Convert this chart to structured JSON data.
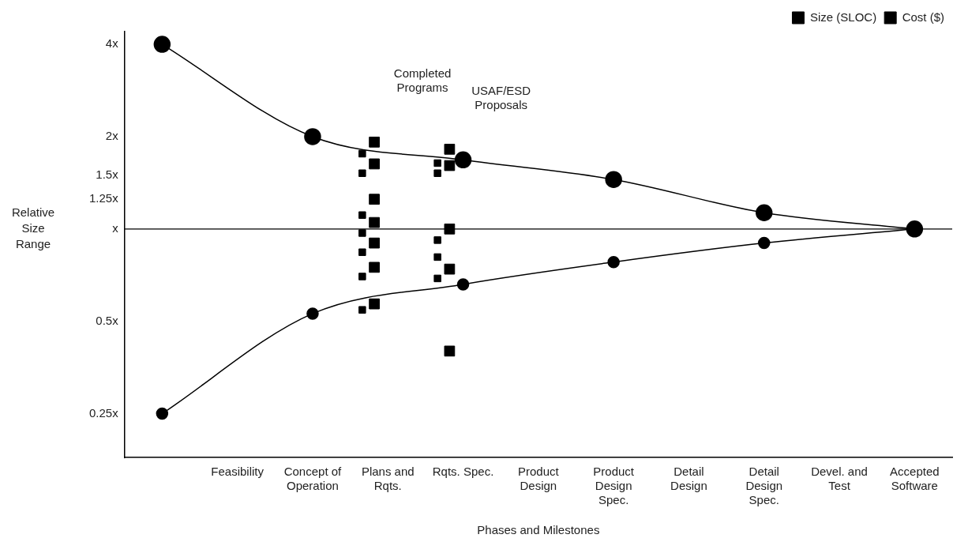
{
  "chart_data": {
    "type": "line",
    "xlabel": "Phases and Milestones",
    "ylabel": "Relative Size Range",
    "log": "y",
    "grid": false,
    "legend": "top right",
    "categories": [
      null,
      "Feasibility",
      "Concept of Operation",
      "Plans and Rqts.",
      "Rqts. Spec.",
      "Product Design",
      "Product Design Spec.",
      "Detail Design",
      "Detail Design Spec.",
      "Devel. and Test",
      "Accepted Software"
    ],
    "ylim": [
      0.18,
      4.4
    ],
    "yticks": [
      {
        "value": 0.25,
        "label": "0.25x"
      },
      {
        "value": 0.5,
        "label": "0.5x"
      },
      {
        "value": 1,
        "label": "x"
      },
      {
        "value": 1.25,
        "label": "1.25x"
      },
      {
        "value": 1.5,
        "label": "1.5x"
      },
      {
        "value": 2,
        "label": "2x"
      },
      {
        "value": 4,
        "label": "4x"
      }
    ],
    "ref_lines": [
      {
        "axis": "y",
        "value": 1,
        "color": "#000000"
      }
    ],
    "annotations": [
      "Completed Programs",
      "USAF/ESD Proposals"
    ],
    "series": [
      {
        "color": "#000000",
        "marker": "circle",
        "values": [
          4,
          null,
          2,
          null,
          1.68,
          null,
          1.45,
          null,
          1.13,
          null,
          1
        ]
      },
      {
        "color": "#000000",
        "marker": "circle",
        "values": [
          0.25,
          null,
          0.53,
          null,
          0.66,
          null,
          0.78,
          null,
          0.9,
          null,
          1
        ]
      },
      {
        "type": "scatter",
        "name": "Size (SLOC)",
        "color": "#000000",
        "marker": "square",
        "x": [
          "Plans and Rqts.",
          "Plans and Rqts.",
          "Plans and Rqts.",
          "Plans and Rqts.",
          "Plans and Rqts.",
          "Plans and Rqts.",
          "Plans and Rqts.",
          "Rqts. Spec.",
          "Rqts. Spec.",
          "Rqts. Spec.",
          "Rqts. Spec.",
          "Rqts. Spec."
        ],
        "values": [
          1.92,
          1.63,
          1.25,
          1.05,
          0.9,
          0.75,
          0.57,
          1.82,
          1.61,
          1,
          0.74,
          0.4
        ]
      },
      {
        "type": "scatter",
        "name": "Cost ($)",
        "color": "#000000",
        "marker": "square",
        "x": [
          "Plans and Rqts.",
          "Plans and Rqts.",
          "Plans and Rqts.",
          "Plans and Rqts.",
          "Plans and Rqts.",
          "Plans and Rqts.",
          "Plans and Rqts.",
          "Rqts. Spec.",
          "Rqts. Spec.",
          "Rqts. Spec.",
          "Rqts. Spec.",
          "Rqts. Spec."
        ],
        "values": [
          1.76,
          1.52,
          1.11,
          0.97,
          0.84,
          0.7,
          0.545,
          1.64,
          1.52,
          0.92,
          0.81,
          0.69
        ]
      }
    ]
  }
}
